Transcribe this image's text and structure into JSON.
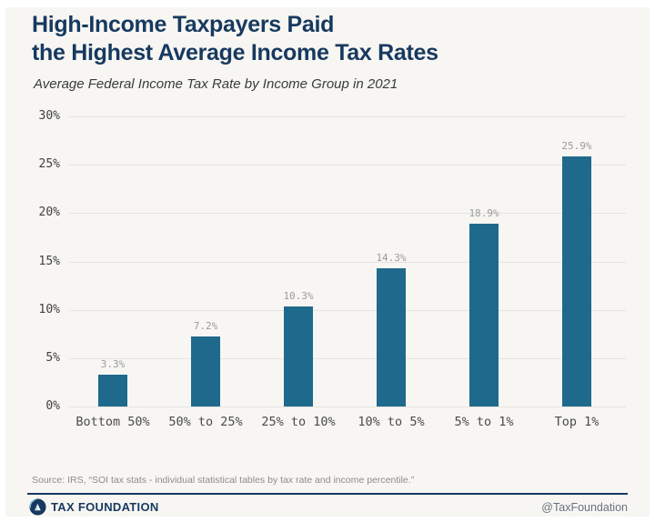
{
  "header": {
    "title_line1": "High-Income Taxpayers Paid",
    "title_line2": "the Highest Average Income Tax Rates",
    "subtitle": "Average Federal Income Tax Rate by Income Group in 2021"
  },
  "chart_data": {
    "type": "bar",
    "title": "High-Income Taxpayers Paid the Highest Average Income Tax Rates",
    "subtitle": "Average Federal Income Tax Rate by Income Group in 2021",
    "categories": [
      "Bottom 50%",
      "50% to 25%",
      "25% to 10%",
      "10% to 5%",
      "5% to 1%",
      "Top 1%"
    ],
    "values": [
      3.3,
      7.2,
      10.3,
      14.3,
      18.9,
      25.9
    ],
    "value_labels": [
      "3.3%",
      "7.2%",
      "10.3%",
      "14.3%",
      "18.9%",
      "25.9%"
    ],
    "xlabel": "",
    "ylabel": "",
    "ylim": [
      0,
      30
    ],
    "y_tick_values": [
      30,
      25,
      20,
      15,
      10,
      5,
      0
    ],
    "y_tick_labels": [
      "30%",
      "25%",
      "20%",
      "15%",
      "10%",
      "5%",
      "0%"
    ],
    "grid": true,
    "legend": "none",
    "bar_color": "#1f698c"
  },
  "footer": {
    "source": "Source: IRS, “SOI tax stats - individual statistical tables by tax rate and income percentile.”",
    "brand": "TAX FOUNDATION",
    "handle": "@TaxFoundation"
  },
  "colors": {
    "title_navy": "#17395f",
    "bar_teal": "#1f698c",
    "card_background": "#f7f6f3",
    "gridline": "#e6e4e1",
    "value_label": "#9b9b9b",
    "axis_label": "#4a4a4a",
    "source_text": "#8c8c8c",
    "handle_text": "#68737e",
    "logo_accent": "#8fc1e3"
  }
}
